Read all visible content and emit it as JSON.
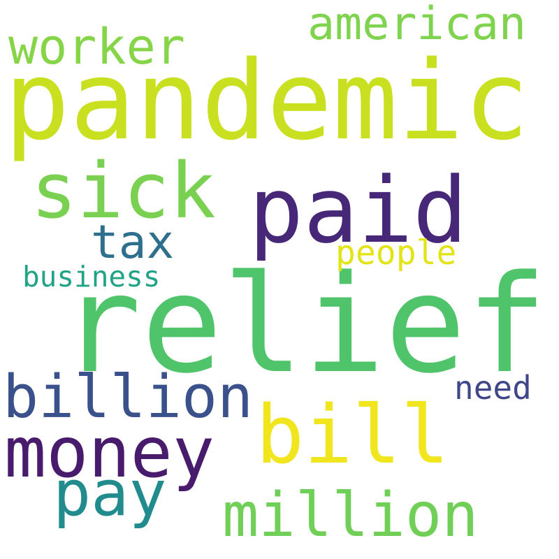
{
  "words": [
    {
      "text": "relief",
      "color": "#50c46a"
    },
    {
      "text": "pandemic",
      "color": "#c8e020"
    },
    {
      "text": "paid",
      "color": "#472878"
    },
    {
      "text": "sick",
      "color": "#7ad151"
    },
    {
      "text": "bill",
      "color": "#f1e51d"
    },
    {
      "text": "million",
      "color": "#70cf57"
    },
    {
      "text": "money",
      "color": "#481b6d"
    },
    {
      "text": "billion",
      "color": "#3b518b"
    },
    {
      "text": "pay",
      "color": "#228b8d"
    },
    {
      "text": "worker",
      "color": "#86d549"
    },
    {
      "text": "american",
      "color": "#7fd34e"
    },
    {
      "text": "tax",
      "color": "#2e6f8e"
    },
    {
      "text": "people",
      "color": "#e2e418"
    },
    {
      "text": "business",
      "color": "#20a386"
    },
    {
      "text": "need",
      "color": "#404688"
    }
  ]
}
